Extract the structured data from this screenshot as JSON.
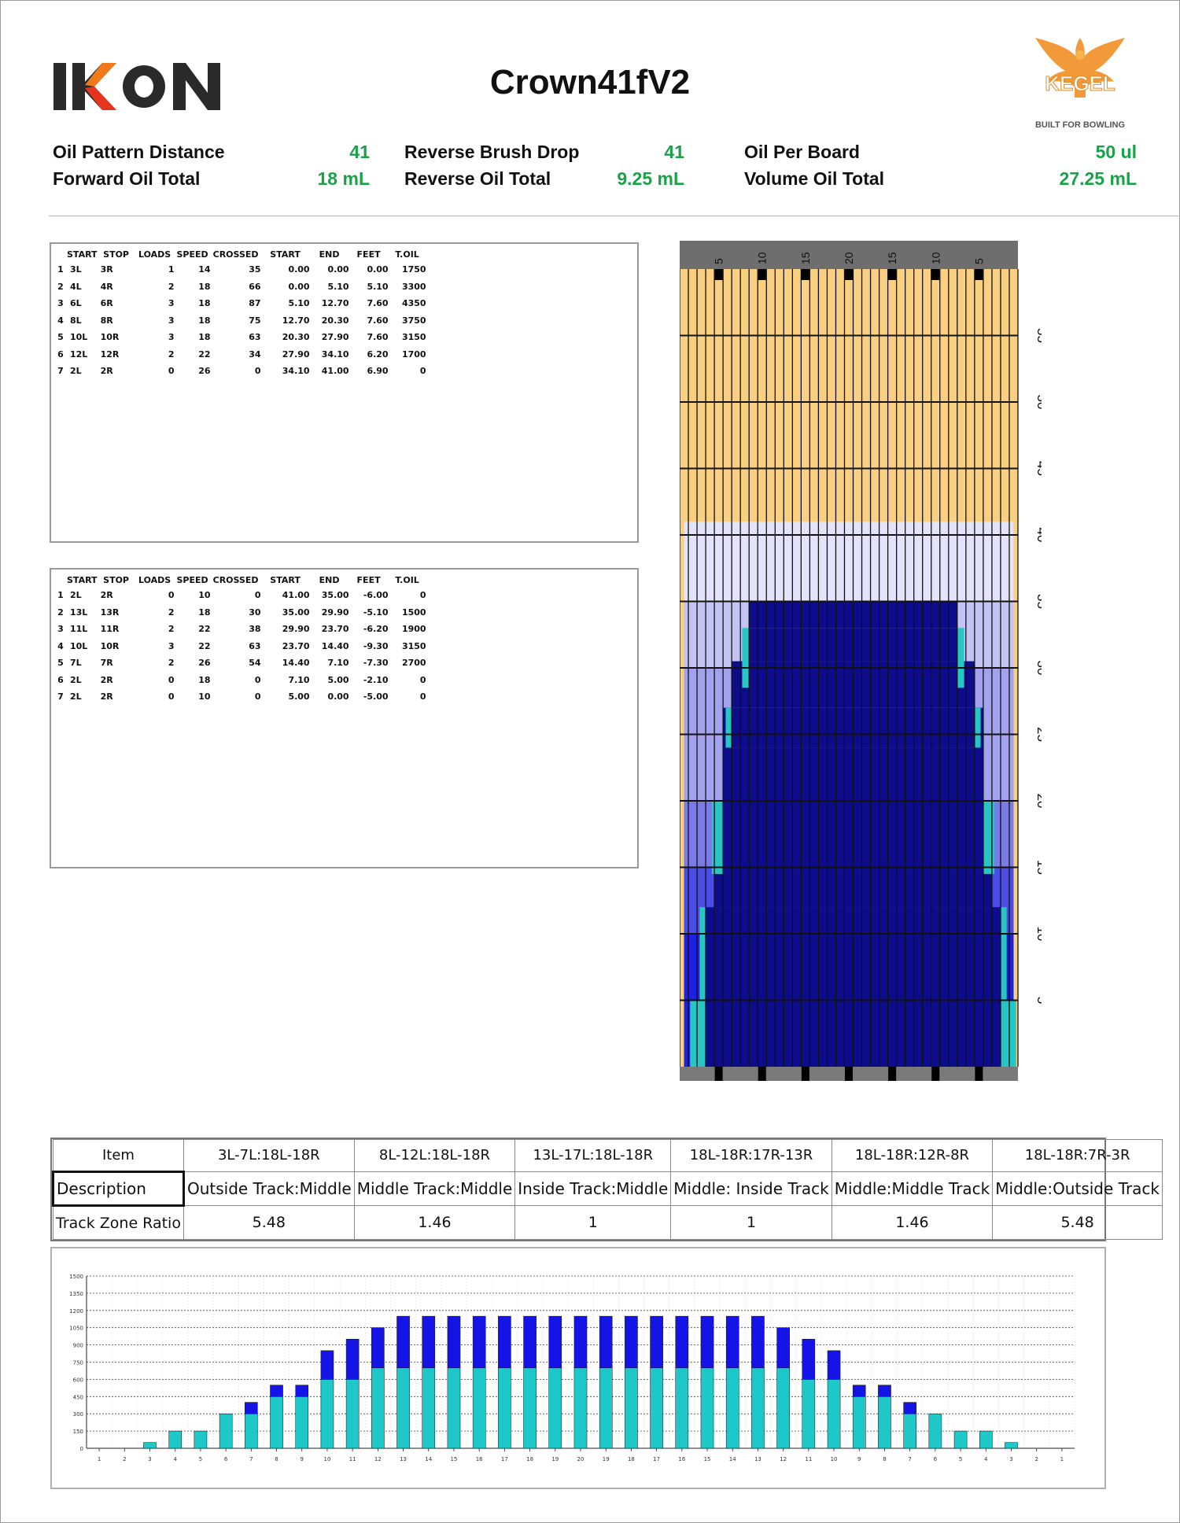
{
  "header": {
    "brand": "IKON",
    "title": "Crown41fV2",
    "kegel_brand": "KEGEL",
    "kegel_tagline": "BUILT FOR BOWLING"
  },
  "summary": {
    "oil_pattern_distance_label": "Oil Pattern Distance",
    "oil_pattern_distance_value": "41",
    "forward_oil_total_label": "Forward Oil Total",
    "forward_oil_total_value": "18 mL",
    "reverse_brush_drop_label": "Reverse Brush Drop",
    "reverse_brush_drop_value": "41",
    "reverse_oil_total_label": "Reverse Oil Total",
    "reverse_oil_total_value": "9.25 mL",
    "oil_per_board_label": "Oil Per Board",
    "oil_per_board_value": "50 ul",
    "volume_oil_total_label": "Volume Oil Total",
    "volume_oil_total_value": "27.25 mL"
  },
  "forward_table": {
    "columns": [
      "",
      "START",
      "STOP",
      "LOADS",
      "SPEED",
      "CROSSED",
      "START",
      "END",
      "FEET",
      "T.OIL"
    ],
    "rows": [
      [
        "1",
        "3L",
        "3R",
        "1",
        "14",
        "35",
        "0.00",
        "0.00",
        "0.00",
        "1750"
      ],
      [
        "2",
        "4L",
        "4R",
        "2",
        "18",
        "66",
        "0.00",
        "5.10",
        "5.10",
        "3300"
      ],
      [
        "3",
        "6L",
        "6R",
        "3",
        "18",
        "87",
        "5.10",
        "12.70",
        "7.60",
        "4350"
      ],
      [
        "4",
        "8L",
        "8R",
        "3",
        "18",
        "75",
        "12.70",
        "20.30",
        "7.60",
        "3750"
      ],
      [
        "5",
        "10L",
        "10R",
        "3",
        "18",
        "63",
        "20.30",
        "27.90",
        "7.60",
        "3150"
      ],
      [
        "6",
        "12L",
        "12R",
        "2",
        "22",
        "34",
        "27.90",
        "34.10",
        "6.20",
        "1700"
      ],
      [
        "7",
        "2L",
        "2R",
        "0",
        "26",
        "0",
        "34.10",
        "41.00",
        "6.90",
        "0"
      ]
    ]
  },
  "reverse_table": {
    "columns": [
      "",
      "START",
      "STOP",
      "LOADS",
      "SPEED",
      "CROSSED",
      "START",
      "END",
      "FEET",
      "T.OIL"
    ],
    "rows": [
      [
        "1",
        "2L",
        "2R",
        "0",
        "10",
        "0",
        "41.00",
        "35.00",
        "-6.00",
        "0"
      ],
      [
        "2",
        "13L",
        "13R",
        "2",
        "18",
        "30",
        "35.00",
        "29.90",
        "-5.10",
        "1500"
      ],
      [
        "3",
        "11L",
        "11R",
        "2",
        "22",
        "38",
        "29.90",
        "23.70",
        "-6.20",
        "1900"
      ],
      [
        "4",
        "10L",
        "10R",
        "3",
        "22",
        "63",
        "23.70",
        "14.40",
        "-9.30",
        "3150"
      ],
      [
        "5",
        "7L",
        "7R",
        "2",
        "26",
        "54",
        "14.40",
        "7.10",
        "-7.30",
        "2700"
      ],
      [
        "6",
        "2L",
        "2R",
        "0",
        "18",
        "0",
        "7.10",
        "5.00",
        "-2.10",
        "0"
      ],
      [
        "7",
        "2L",
        "2R",
        "0",
        "10",
        "0",
        "5.00",
        "0.00",
        "-5.00",
        "0"
      ]
    ]
  },
  "lane_graph": {
    "top_labels": [
      "5",
      "10",
      "15",
      "20",
      "15",
      "10",
      "5"
    ],
    "distance_labels": [
      "55",
      "50",
      "45",
      "40",
      "35",
      "30",
      "25",
      "20",
      "15",
      "10",
      "5"
    ],
    "colors": {
      "dry": "#f9cf82",
      "light": "#e3e3fb",
      "medium_light": "#c4c4f4",
      "medium": "#a2a2ee",
      "heavy_medium": "#7b7be8",
      "heavy": "#4c4ce6",
      "blue": "#2020e0",
      "navy": "#0c0c8c",
      "teal": "#26c6c4"
    }
  },
  "track_zone": {
    "item_label": "Item",
    "description_label": "Description",
    "ratio_label": "Track Zone Ratio",
    "zones": [
      {
        "item": "3L-7L:18L-18R",
        "description": "Outside Track:Middle",
        "ratio": "5.48"
      },
      {
        "item": "8L-12L:18L-18R",
        "description": "Middle Track:Middle",
        "ratio": "1.46"
      },
      {
        "item": "13L-17L:18L-18R",
        "description": "Inside Track:Middle",
        "ratio": "1"
      },
      {
        "item": "18L-18R:17R-13R",
        "description": "Middle: Inside Track",
        "ratio": "1"
      },
      {
        "item": "18L-18R:12R-8R",
        "description": "Middle:Middle Track",
        "ratio": "1.46"
      },
      {
        "item": "18L-18R:7R-3R",
        "description": "Middle:Outside Track",
        "ratio": "5.48"
      }
    ]
  },
  "chart_data": {
    "type": "bar",
    "stacked": true,
    "categories": [
      "1",
      "2",
      "3",
      "4",
      "5",
      "6",
      "7",
      "8",
      "9",
      "10",
      "11",
      "12",
      "13",
      "14",
      "15",
      "16",
      "17",
      "18",
      "19",
      "20",
      "19",
      "18",
      "17",
      "16",
      "15",
      "14",
      "13",
      "12",
      "11",
      "10",
      "9",
      "8",
      "7",
      "6",
      "5",
      "4",
      "3",
      "2",
      "1"
    ],
    "series": [
      {
        "color": "#1fc8c8",
        "values": [
          0,
          0,
          50,
          150,
          150,
          300,
          300,
          450,
          450,
          600,
          600,
          700,
          700,
          700,
          700,
          700,
          700,
          700,
          700,
          700,
          700,
          700,
          700,
          700,
          700,
          700,
          700,
          700,
          600,
          600,
          450,
          450,
          300,
          300,
          150,
          150,
          50,
          0,
          0
        ]
      },
      {
        "color": "#1414e6",
        "values": [
          0,
          0,
          0,
          0,
          0,
          0,
          100,
          100,
          100,
          250,
          350,
          350,
          450,
          450,
          450,
          450,
          450,
          450,
          450,
          450,
          450,
          450,
          450,
          450,
          450,
          450,
          450,
          350,
          350,
          250,
          100,
          100,
          100,
          0,
          0,
          0,
          0,
          0,
          0
        ]
      }
    ],
    "ylim": [
      0,
      1500
    ],
    "yticks": [
      "0",
      "150",
      "300",
      "450",
      "600",
      "750",
      "900",
      "1050",
      "1200",
      "1350",
      "1500"
    ],
    "grid": true
  }
}
